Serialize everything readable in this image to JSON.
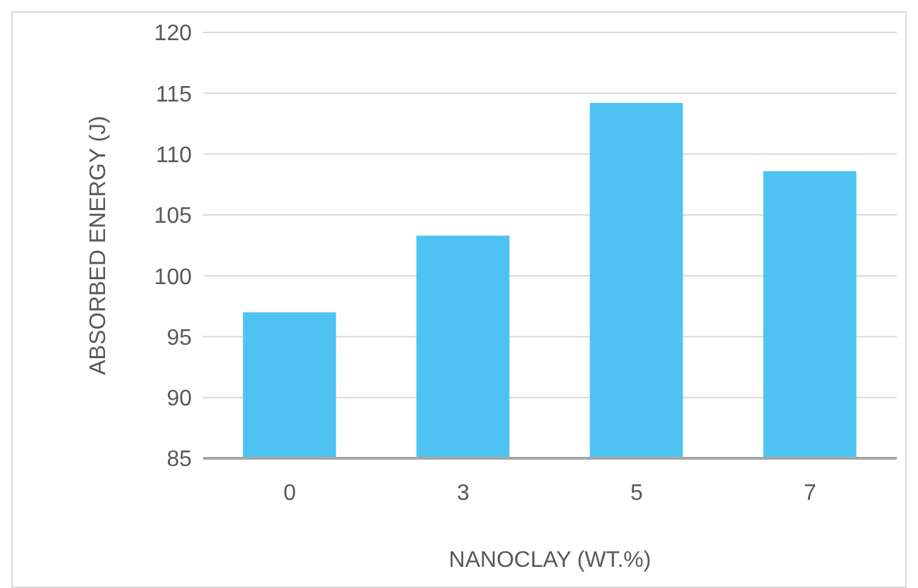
{
  "chart_data": {
    "type": "bar",
    "xlabel": "NANOCLAY  (WT.%)",
    "ylabel": "ABSORBED ENERGY (J)",
    "categories": [
      "0",
      "3",
      "5",
      "7"
    ],
    "values": [
      97.0,
      103.3,
      114.2,
      108.6
    ],
    "color": "#4ec3f1",
    "ylim": [
      85,
      120
    ],
    "yticks": [
      85,
      90,
      95,
      100,
      105,
      110,
      115,
      120
    ],
    "grid": "y",
    "legend": false
  }
}
